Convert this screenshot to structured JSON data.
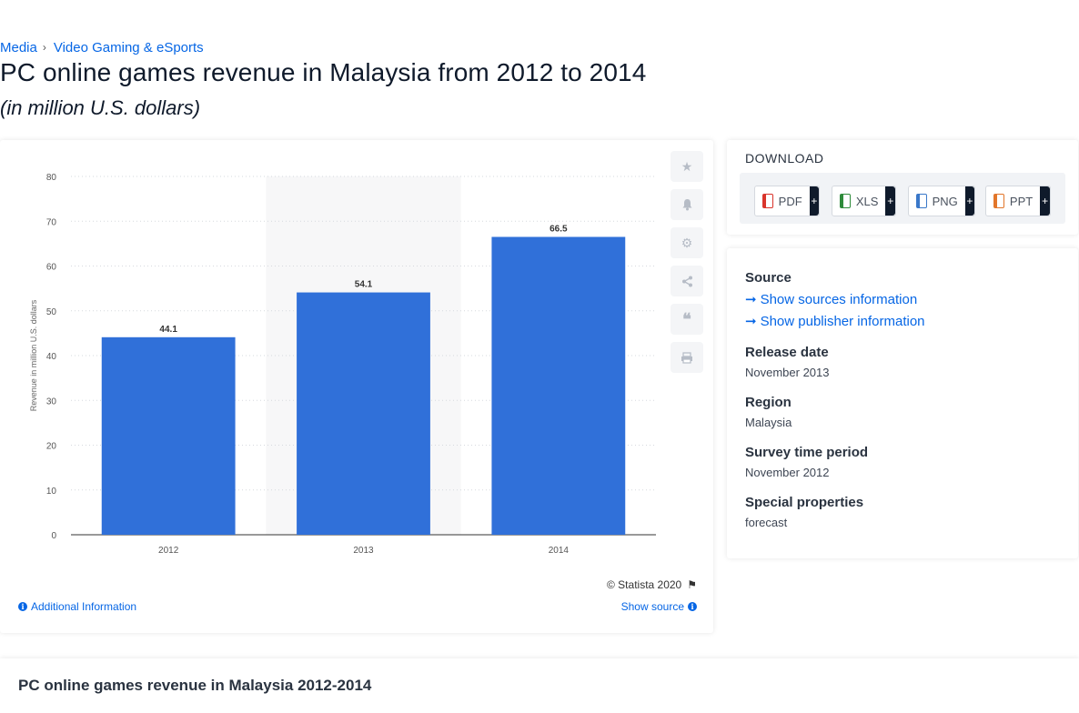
{
  "breadcrumb": {
    "items": [
      "Media",
      "Video Gaming & eSports"
    ],
    "separator": "›"
  },
  "title": "PC online games revenue in Malaysia from 2012 to 2014",
  "subtitle": "(in million U.S. dollars)",
  "chart_data": {
    "type": "bar",
    "categories": [
      "2012",
      "2013",
      "2014"
    ],
    "values": [
      44.1,
      54.1,
      66.5
    ],
    "data_labels": [
      "44.1",
      "54.1",
      "66.5"
    ],
    "ylabel": "Revenue in million U.S. dollars",
    "xlabel": "",
    "ylim": [
      0,
      80
    ],
    "yticks": [
      "0",
      "10",
      "20",
      "30",
      "40",
      "50",
      "60",
      "70",
      "80"
    ],
    "grid": true,
    "highlighted_category": "2013",
    "bar_color": "#3070d9"
  },
  "chart_footer": {
    "credit": "© Statista 2020",
    "additional_info": "Additional Information",
    "show_source": "Show source"
  },
  "toolbar": {
    "icons": [
      "star-icon",
      "bell-icon",
      "gear-icon",
      "share-icon",
      "quote-icon",
      "print-icon"
    ]
  },
  "download": {
    "title": "DOWNLOAD",
    "buttons": [
      {
        "label": "PDF",
        "color": "#d9342b",
        "plus": "+"
      },
      {
        "label": "XLS",
        "color": "#2e8b3a",
        "plus": "+"
      },
      {
        "label": "PNG",
        "color": "#3a78c9",
        "plus": "+"
      },
      {
        "label": "PPT",
        "color": "#e2762a",
        "plus": "+"
      }
    ]
  },
  "meta": {
    "source_label": "Source",
    "show_sources": "Show sources information",
    "show_publisher": "Show publisher information",
    "release_label": "Release date",
    "release_value": "November 2013",
    "region_label": "Region",
    "region_value": "Malaysia",
    "survey_label": "Survey time period",
    "survey_value": "November 2012",
    "special_label": "Special properties",
    "special_value": "forecast"
  },
  "bottom": {
    "title": "PC online games revenue in Malaysia 2012-2014"
  }
}
